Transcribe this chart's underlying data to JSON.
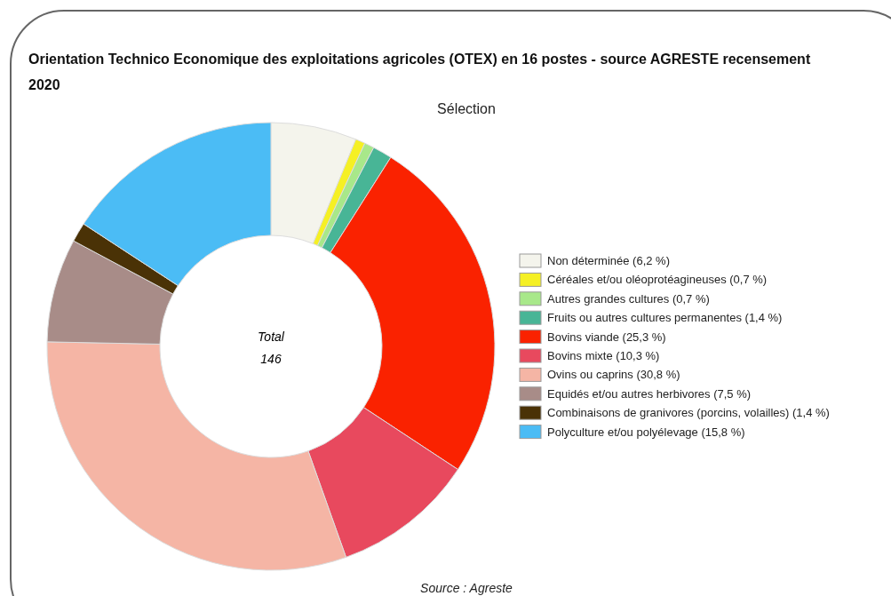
{
  "chart_data": {
    "type": "donut",
    "title": "Orientation Technico Economique des exploitations agricoles (OTEX) en 16 postes - source AGRESTE recensement 2020",
    "subtitle": "Sélection",
    "categories": [
      "Non déterminée (6,2 %)",
      "Céréales et/ou oléoprotéagineuses (0,7 %)",
      "Autres grandes cultures (0,7 %)",
      "Fruits ou autres cultures permanentes (1,4 %)",
      "Bovins viande (25,3 %)",
      "Bovins mixte (10,3 %)",
      "Ovins ou caprins (30,8 %)",
      "Equidés et/ou autres herbivores (7,5 %)",
      "Combinaisons de granivores (porcins, volailles) (1,4 %)",
      "Polyculture et/ou polyélevage (15,8 %)"
    ],
    "values": [
      6.2,
      0.7,
      0.7,
      1.4,
      25.3,
      10.3,
      30.8,
      7.5,
      1.4,
      15.8
    ],
    "colors": [
      "#f4f4ec",
      "#f5f024",
      "#a8e88a",
      "#48b596",
      "#fa2200",
      "#e8495e",
      "#f5b5a5",
      "#a88c88",
      "#4a3206",
      "#4bbcf5"
    ],
    "legend": "right",
    "annotations": [
      "Total",
      "146",
      "Source : Agreste"
    ]
  }
}
